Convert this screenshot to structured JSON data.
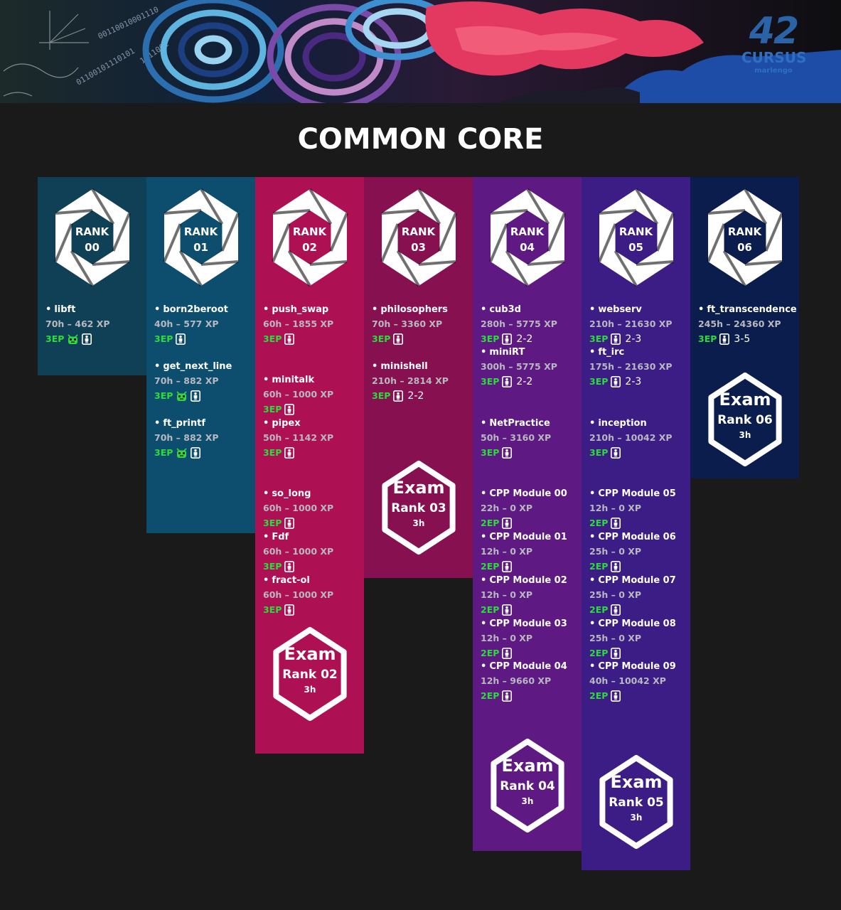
{
  "banner": {
    "logo_number": "42",
    "logo_word": "CURSUS",
    "logo_author": "marlengo"
  },
  "title": "COMMON CORE",
  "colors": {
    "background": "#1b1a1a",
    "ep_green": "#2bdc3c",
    "xp_gray": "#b8b8c0",
    "rank_columns": [
      "#0f4056",
      "#0d4e6f",
      "#ad1154",
      "#861050",
      "#5e1a82",
      "#3c1d86",
      "#0b1d4d"
    ]
  },
  "ranks": [
    {
      "label": "RANK",
      "number": "00",
      "projects": [
        {
          "name": "libft",
          "xp": "70h – 462 XP",
          "ep": "3EP",
          "robot": true,
          "team": ""
        }
      ],
      "exam": null
    },
    {
      "label": "RANK",
      "number": "01",
      "projects": [
        {
          "name": "born2beroot",
          "xp": "40h – 577 XP",
          "ep": "3EP",
          "robot": false,
          "team": ""
        },
        {
          "name": "get_next_line",
          "xp": "70h – 882 XP",
          "ep": "3EP",
          "robot": true,
          "team": ""
        },
        {
          "name": "ft_printf",
          "xp": "70h –  882 XP",
          "ep": "3EP",
          "robot": true,
          "team": ""
        }
      ],
      "exam": null
    },
    {
      "label": "RANK",
      "number": "02",
      "projects": [
        {
          "name": "push_swap",
          "xp": "60h – 1855 XP",
          "ep": "3EP",
          "robot": false,
          "team": ""
        },
        {
          "name": "minitalk",
          "xp": "60h – 1000 XP",
          "ep": "3EP",
          "robot": false,
          "team": ""
        },
        {
          "name": "pipex",
          "xp": "50h – 1142 XP",
          "ep": "3EP",
          "robot": false,
          "team": ""
        },
        {
          "name": "so_long",
          "xp": "60h – 1000 XP",
          "ep": "3EP",
          "robot": false,
          "team": ""
        },
        {
          "name": "Fdf",
          "xp": "60h – 1000 XP",
          "ep": "3EP",
          "robot": false,
          "team": ""
        },
        {
          "name": "fract-ol",
          "xp": "60h – 1000 XP",
          "ep": "3EP",
          "robot": false,
          "team": ""
        }
      ],
      "exam": {
        "title": "Exam",
        "rank": "Rank 02",
        "duration": "3h"
      }
    },
    {
      "label": "RANK",
      "number": "03",
      "projects": [
        {
          "name": "philosophers",
          "xp": "70h – 3360 XP",
          "ep": "3EP",
          "robot": false,
          "team": ""
        },
        {
          "name": "minishell",
          "xp": "210h – 2814 XP",
          "ep": "3EP",
          "robot": false,
          "team": "2-2"
        }
      ],
      "exam": {
        "title": "Exam",
        "rank": "Rank 03",
        "duration": "3h"
      }
    },
    {
      "label": "RANK",
      "number": "04",
      "projects": [
        {
          "name": "cub3d",
          "xp": "280h – 5775 XP",
          "ep": "3EP",
          "robot": false,
          "team": "2-2"
        },
        {
          "name": "miniRT",
          "xp": "300h – 5775 XP",
          "ep": "3EP",
          "robot": false,
          "team": "2-2"
        },
        {
          "name": "NetPractice",
          "xp": "50h – 3160 XP",
          "ep": "3EP",
          "robot": false,
          "team": ""
        },
        {
          "name": "CPP Module 00",
          "xp": "22h – 0 XP",
          "ep": "2EP",
          "robot": false,
          "team": ""
        },
        {
          "name": "CPP Module 01",
          "xp": "12h – 0 XP",
          "ep": "2EP",
          "robot": false,
          "team": ""
        },
        {
          "name": "CPP Module 02",
          "xp": "12h – 0 XP",
          "ep": "2EP",
          "robot": false,
          "team": ""
        },
        {
          "name": "CPP Module 03",
          "xp": "12h – 0 XP",
          "ep": "2EP",
          "robot": false,
          "team": ""
        },
        {
          "name": "CPP Module 04",
          "xp": "12h – 9660 XP",
          "ep": "2EP",
          "robot": false,
          "team": ""
        }
      ],
      "exam": {
        "title": "Exam",
        "rank": "Rank 04",
        "duration": "3h"
      }
    },
    {
      "label": "RANK",
      "number": "05",
      "projects": [
        {
          "name": "webserv",
          "xp": "210h – 21630 XP",
          "ep": "3EP",
          "robot": false,
          "team": "2-3"
        },
        {
          "name": "ft_irc",
          "xp": "175h – 21630 XP",
          "ep": "3EP",
          "robot": false,
          "team": "2-3"
        },
        {
          "name": "inception",
          "xp": "210h – 10042 XP",
          "ep": "3EP",
          "robot": false,
          "team": ""
        },
        {
          "name": "CPP Module 05",
          "xp": "12h – 0 XP",
          "ep": "2EP",
          "robot": false,
          "team": ""
        },
        {
          "name": "CPP Module 06",
          "xp": "25h – 0 XP",
          "ep": "2EP",
          "robot": false,
          "team": ""
        },
        {
          "name": "CPP Module 07",
          "xp": "25h – 0 XP",
          "ep": "2EP",
          "robot": false,
          "team": ""
        },
        {
          "name": "CPP Module 08",
          "xp": "25h – 0 XP",
          "ep": "2EP",
          "robot": false,
          "team": ""
        },
        {
          "name": "CPP Module 09",
          "xp": "40h – 10042 XP",
          "ep": "2EP",
          "robot": false,
          "team": ""
        }
      ],
      "exam": {
        "title": "Exam",
        "rank": "Rank 05",
        "duration": "3h"
      }
    },
    {
      "label": "RANK",
      "number": "06",
      "projects": [
        {
          "name": "ft_transcendence",
          "xp": "245h – 24360 XP",
          "ep": "3EP",
          "robot": false,
          "team": "3-5"
        }
      ],
      "exam": {
        "title": "Exam",
        "rank": "Rank 06",
        "duration": "3h"
      }
    }
  ]
}
